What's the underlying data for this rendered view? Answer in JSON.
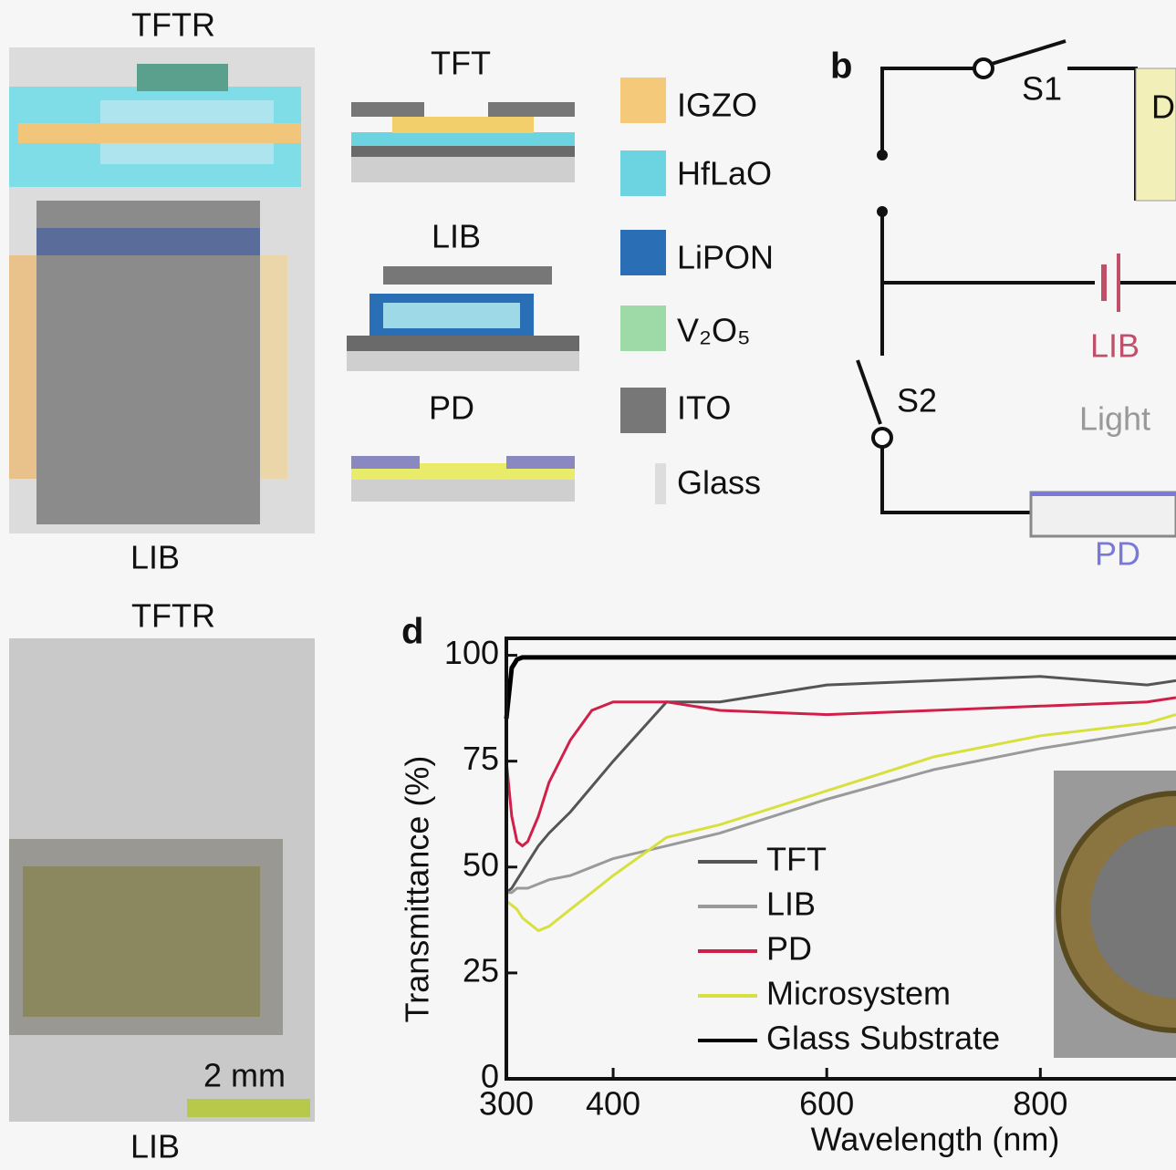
{
  "panel_a": {
    "top_label": "TFTR",
    "bottom_label": "LIB",
    "sections": [
      "TFT",
      "LIB",
      "PD"
    ],
    "materials": [
      "IGZO",
      "HfLaO",
      "LiPON",
      "V₂O₅",
      "ITO",
      "Glass"
    ]
  },
  "panel_b": {
    "label": "b",
    "switch_1": "S1",
    "switch_2": "S2",
    "battery": "LIB",
    "light": "Light",
    "detector": "PD",
    "load": "D"
  },
  "panel_c": {
    "top_label": "TFTR",
    "bottom_label": "LIB",
    "scale_bar": "2 mm"
  },
  "chart_data": {
    "type": "line",
    "panel_label": "d",
    "x_label": "Wavelength (nm)",
    "y_label": "Transmittance (%)",
    "x": [
      300,
      305,
      310,
      315,
      320,
      330,
      340,
      360,
      380,
      400,
      450,
      500,
      600,
      700,
      800,
      900,
      927
    ],
    "series": [
      {
        "name": "TFT",
        "color": "#555555",
        "values": [
          44,
          45,
          47,
          49,
          51,
          55,
          58,
          63,
          69,
          75,
          89,
          89,
          93,
          94,
          95,
          93,
          94
        ]
      },
      {
        "name": "LIB",
        "color": "#9a9a9a",
        "values": [
          44,
          44,
          45,
          45,
          45,
          46,
          47,
          48,
          50,
          52,
          55,
          58,
          66,
          73,
          78,
          82,
          83
        ]
      },
      {
        "name": "PD",
        "color": "#d0204a",
        "values": [
          75,
          62,
          56,
          55,
          56,
          62,
          70,
          80,
          87,
          89,
          89,
          87,
          86,
          87,
          88,
          89,
          90
        ]
      },
      {
        "name": "Microsystem",
        "color": "#d8e040",
        "values": [
          42,
          41,
          40,
          38,
          37,
          35,
          36,
          40,
          44,
          48,
          57,
          60,
          68,
          76,
          81,
          84,
          86
        ]
      },
      {
        "name": "Glass Substrate",
        "color": "#000000",
        "values": [
          85,
          97,
          99,
          99.5,
          99.5,
          99.5,
          99.5,
          99.5,
          99.5,
          99.5,
          99.5,
          99.5,
          99.5,
          99.5,
          99.5,
          99.5,
          99.5
        ]
      }
    ],
    "xlim": [
      300,
      927
    ],
    "ylim": [
      0,
      104
    ],
    "xticks": [
      300,
      400,
      600,
      800
    ],
    "yticks": [
      0,
      25,
      50,
      75,
      100
    ]
  }
}
